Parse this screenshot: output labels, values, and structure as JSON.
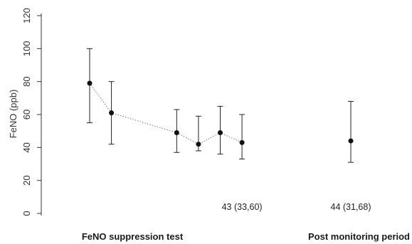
{
  "chart_data": {
    "type": "scatter",
    "title": "",
    "ylabel": "FeNO (ppb)",
    "xlabel": "",
    "ylim": [
      0,
      120
    ],
    "yticks": [
      0,
      20,
      40,
      60,
      80,
      100,
      120
    ],
    "grid": false,
    "legend": "none",
    "points": [
      {
        "x": 1,
        "y": 79,
        "lower": 55,
        "upper": 100,
        "group": "suppression"
      },
      {
        "x": 2,
        "y": 61,
        "lower": 42,
        "upper": 80,
        "group": "suppression"
      },
      {
        "x": 5,
        "y": 49,
        "lower": 37,
        "upper": 63,
        "group": "suppression"
      },
      {
        "x": 6,
        "y": 42,
        "lower": 38,
        "upper": 59,
        "group": "suppression"
      },
      {
        "x": 7,
        "y": 49,
        "lower": 36,
        "upper": 65,
        "group": "suppression"
      },
      {
        "x": 8,
        "y": 43,
        "lower": 33,
        "upper": 60,
        "group": "suppression"
      },
      {
        "x": 13,
        "y": 44,
        "lower": 31,
        "upper": 68,
        "group": "post"
      }
    ],
    "annotations": [
      {
        "text": "43 (33,60)",
        "x": 8
      },
      {
        "text": "44 (31,68)",
        "x": 13
      }
    ],
    "phase_labels": [
      "FeNO suppression test",
      "Post monitoring period"
    ]
  },
  "colors": {
    "marker": "#111111",
    "errorbar": "#222222",
    "connector": "#555555",
    "axis": "#333333"
  }
}
